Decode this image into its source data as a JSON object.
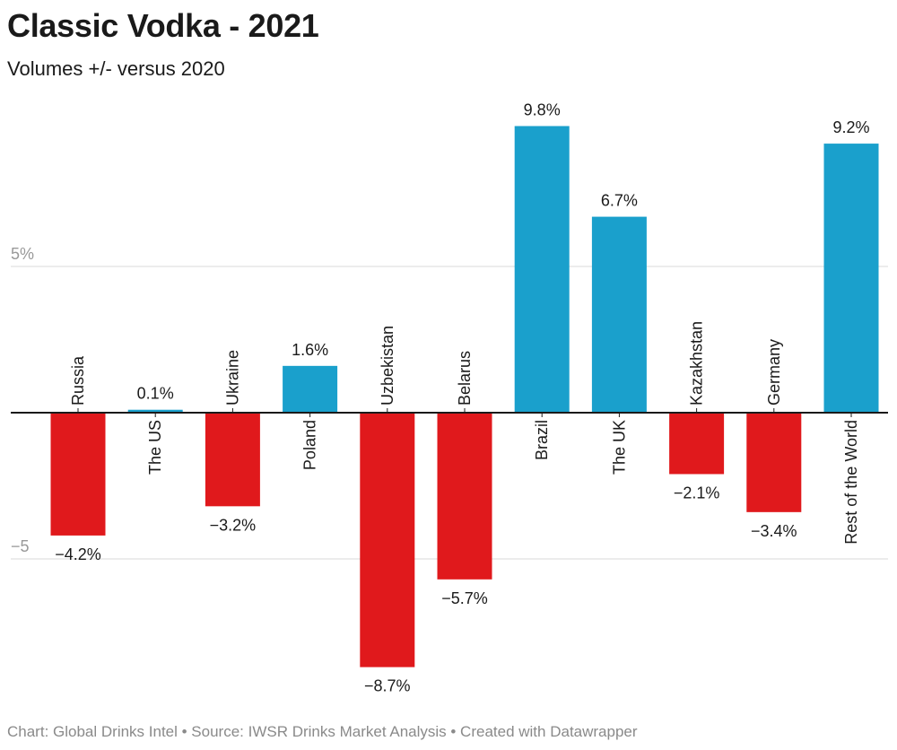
{
  "header": {
    "title": "Classic Vodka - 2021",
    "subtitle": "Volumes +/- versus 2020"
  },
  "footer": {
    "text": "Chart: Global Drinks Intel • Source: IWSR Drinks Market Analysis • Created with Datawrapper"
  },
  "colors": {
    "positive": "#1aa0cc",
    "negative": "#e0191c",
    "grid": "#d9d9d9",
    "axis": "#1a1a1a",
    "tick_text": "#999999"
  },
  "chart_data": {
    "type": "bar",
    "title": "Classic Vodka - 2021",
    "subtitle": "Volumes +/- versus 2020",
    "categories": [
      "Russia",
      "The US",
      "Ukraine",
      "Poland",
      "Uzbekistan",
      "Belarus",
      "Brazil",
      "The UK",
      "Kazakhstan",
      "Germany",
      "Rest of the World"
    ],
    "values": [
      -4.2,
      0.1,
      -3.2,
      1.6,
      -8.7,
      -5.7,
      9.8,
      6.7,
      -2.1,
      -3.4,
      9.2
    ],
    "value_labels": [
      "−4.2%",
      "0.1%",
      "−3.2%",
      "1.6%",
      "−8.7%",
      "−5.7%",
      "9.8%",
      "6.7%",
      "−2.1%",
      "−3.4%",
      "9.2%"
    ],
    "y_ticks": [
      {
        "value": 5,
        "label": "5%"
      },
      {
        "value": -5,
        "label": "−5"
      }
    ],
    "ylim": [
      -9,
      11
    ],
    "grid": true,
    "xlabel": "",
    "ylabel": ""
  }
}
